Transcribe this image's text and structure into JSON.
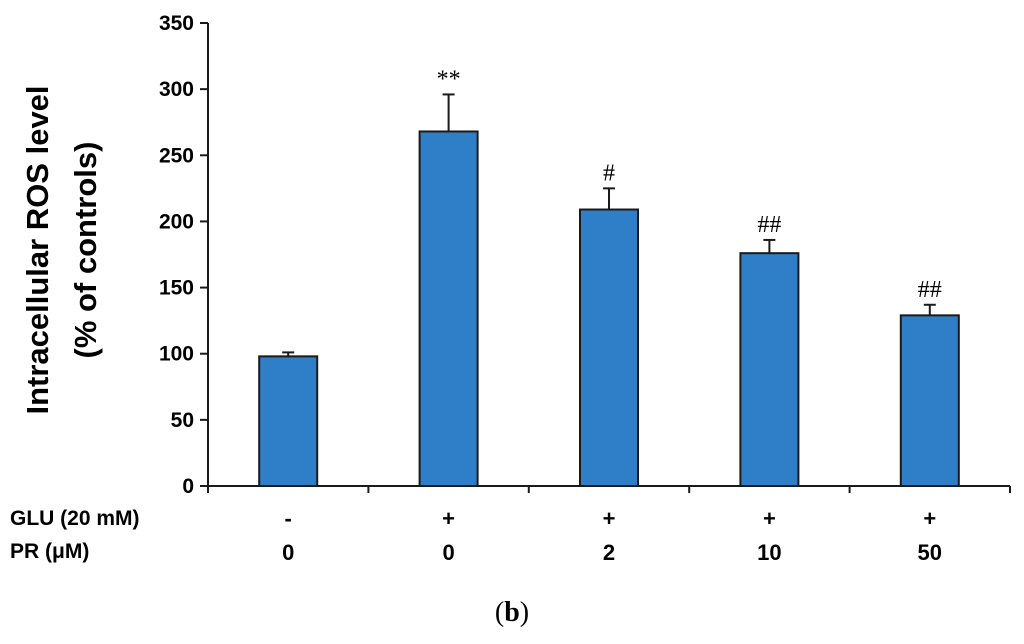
{
  "chart_data": {
    "type": "bar",
    "ylabel_line1": "Intracellular ROS level",
    "ylabel_line2": "(% of controls)",
    "ylim": [
      0,
      350
    ],
    "yticks": [
      0,
      50,
      100,
      150,
      200,
      250,
      300,
      350
    ],
    "bar_color": "#2f7fc8",
    "bar_edge_color": "#1a1a1a",
    "bars": [
      {
        "glu": "-",
        "pr": "0",
        "value": 98,
        "error": 3,
        "annotation": ""
      },
      {
        "glu": "+",
        "pr": "0",
        "value": 268,
        "error": 28,
        "annotation": "**"
      },
      {
        "glu": "+",
        "pr": "2",
        "value": 209,
        "error": 16,
        "annotation": "#"
      },
      {
        "glu": "+",
        "pr": "10",
        "value": 176,
        "error": 10,
        "annotation": "##"
      },
      {
        "glu": "+",
        "pr": "50",
        "value": 129,
        "error": 8,
        "annotation": "##"
      }
    ],
    "row_labels": {
      "glu": "GLU (20 mM)",
      "pr": "PR (μM)"
    }
  },
  "panel": {
    "open": "(",
    "letter": "b",
    "close": ")"
  }
}
